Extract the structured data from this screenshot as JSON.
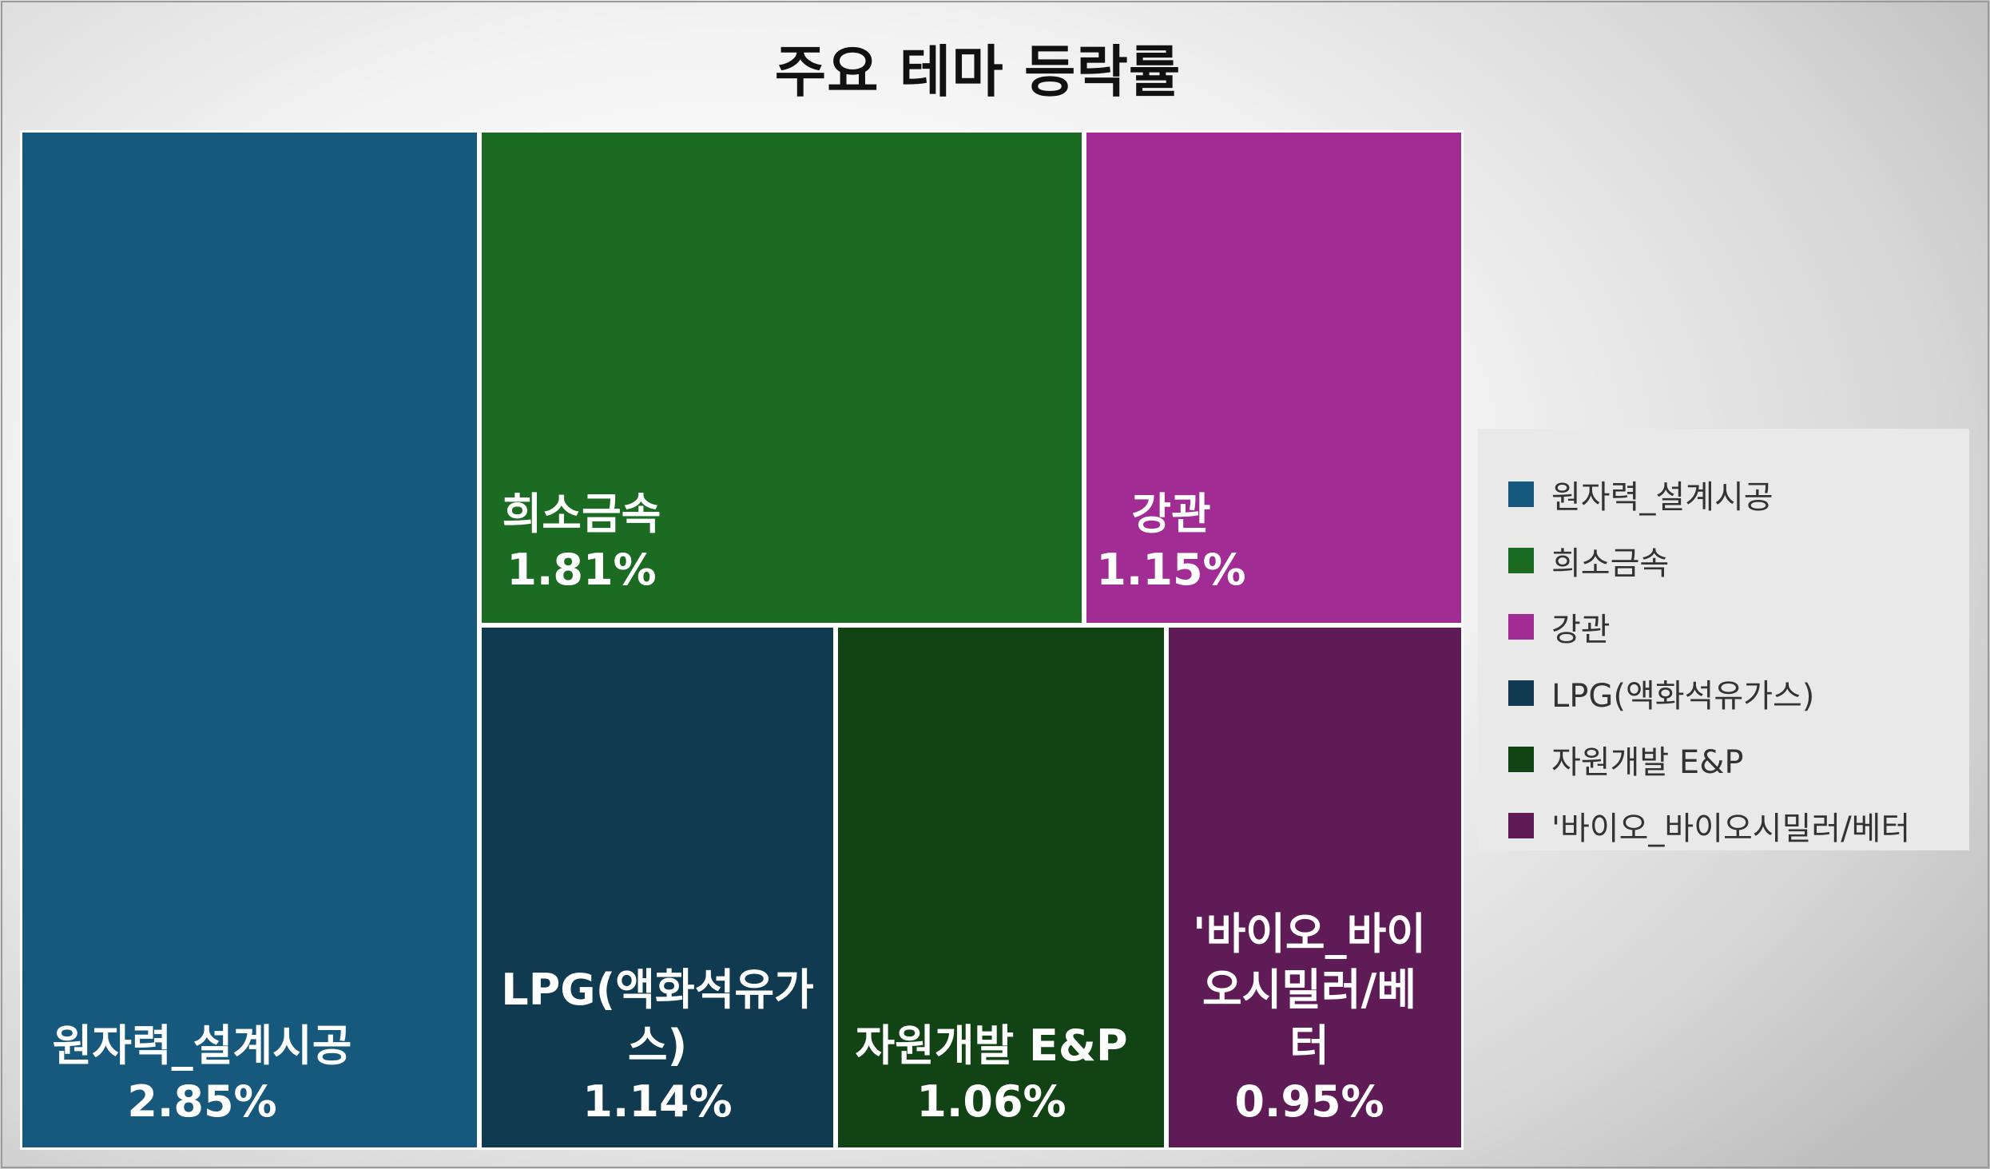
{
  "chart_data": {
    "type": "treemap",
    "title": "주요 테마 등락률",
    "unit": "%",
    "series": [
      {
        "name": "원자력_설계시공",
        "value": 2.85,
        "label_lines": [
          "원자력_설계시공",
          "2.85%"
        ],
        "color": "#17597d"
      },
      {
        "name": "희소금속",
        "value": 1.81,
        "label_lines": [
          "희소금속",
          "1.81%"
        ],
        "color": "#1c6b23"
      },
      {
        "name": "강관",
        "value": 1.15,
        "label_lines": [
          "강관",
          "1.15%"
        ],
        "color": "#a02c94"
      },
      {
        "name": "LPG(액화석유가스)",
        "value": 1.14,
        "label_lines": [
          "LPG(액화석유가",
          "스)",
          "1.14%"
        ],
        "color": "#0f3a50"
      },
      {
        "name": "자원개발 E&P",
        "value": 1.06,
        "label_lines": [
          "자원개발 E&P",
          "1.06%"
        ],
        "color": "#124315"
      },
      {
        "name": "'바이오_바이오시밀러/베터",
        "value": 0.95,
        "label_lines": [
          "'바이오_바이",
          "오시밀러/베",
          "터",
          "0.95%"
        ],
        "color": "#5e1b56"
      }
    ],
    "legend": {
      "position": "right"
    }
  }
}
